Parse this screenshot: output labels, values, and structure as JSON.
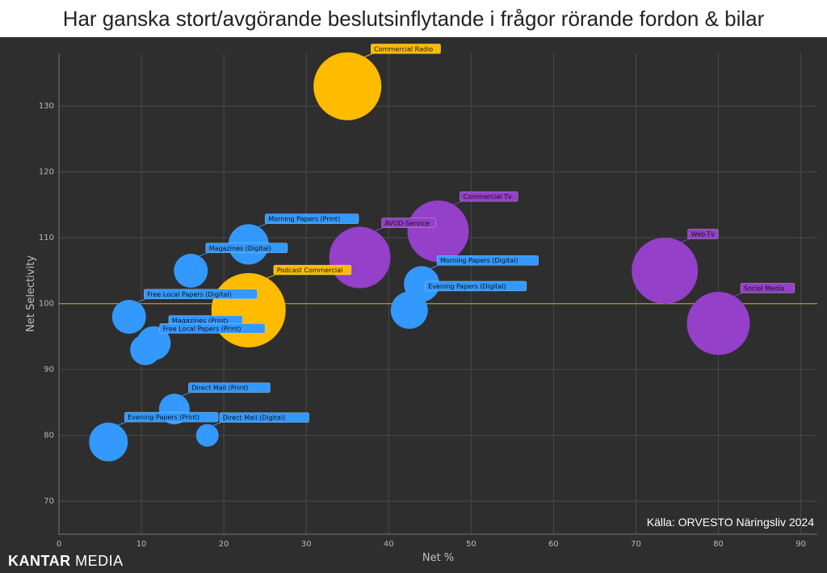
{
  "chart_data": {
    "type": "scatter",
    "title": "Har ganska stort/avgörande beslutsinflytande i frågor rörande fordon & bilar",
    "xlabel": "Net %",
    "ylabel": "Net Selectivity",
    "xlim": [
      0,
      92
    ],
    "ylim": [
      65,
      138
    ],
    "xticks": [
      0,
      10,
      20,
      30,
      40,
      50,
      60,
      70,
      80,
      90
    ],
    "yticks": [
      70,
      80,
      90,
      100,
      110,
      120,
      130
    ],
    "grid": true,
    "reference_line": {
      "axis": "y",
      "value": 100,
      "color": "#e0a020"
    },
    "colors": {
      "print_digital": "#3399ff",
      "radio_podcast": "#ffbb00",
      "tv_social": "#9440c8"
    },
    "points": [
      {
        "label": "Commercial Radio",
        "x": 35,
        "y": 133,
        "r": 42,
        "color": "#ffbb00"
      },
      {
        "label": "Podcast Commercial",
        "x": 23,
        "y": 99,
        "r": 46,
        "color": "#ffbb00"
      },
      {
        "label": "Commercial Tv",
        "x": 46,
        "y": 111,
        "r": 38,
        "color": "#9440c8"
      },
      {
        "label": "AVOD-Service",
        "x": 36.5,
        "y": 107,
        "r": 38,
        "color": "#9440c8"
      },
      {
        "label": "Web-Tv",
        "x": 73.5,
        "y": 105,
        "r": 41,
        "color": "#9440c8"
      },
      {
        "label": "Social Media",
        "x": 80,
        "y": 97,
        "r": 39,
        "color": "#9440c8"
      },
      {
        "label": "Morning Papers (Print)",
        "x": 23,
        "y": 109,
        "r": 25,
        "color": "#3399ff"
      },
      {
        "label": "Magazines (Digital)",
        "x": 16,
        "y": 105,
        "r": 21,
        "color": "#3399ff"
      },
      {
        "label": "Free Local Papers (Digital)",
        "x": 8.5,
        "y": 98,
        "r": 21,
        "color": "#3399ff"
      },
      {
        "label": "Magazines (Print)",
        "x": 11.5,
        "y": 94,
        "r": 21,
        "color": "#3399ff"
      },
      {
        "label": "Free Local Papers (Print)",
        "x": 10.5,
        "y": 93,
        "r": 19,
        "color": "#3399ff"
      },
      {
        "label": "Morning Papers (Digital)",
        "x": 44,
        "y": 103,
        "r": 22,
        "color": "#3399ff"
      },
      {
        "label": "Evening Papers (Digital)",
        "x": 42.5,
        "y": 99,
        "r": 23,
        "color": "#3399ff"
      },
      {
        "label": "Direct Mail (Print)",
        "x": 14,
        "y": 84,
        "r": 19,
        "color": "#3399ff"
      },
      {
        "label": "Direct Mail (Digital)",
        "x": 18,
        "y": 80,
        "r": 14,
        "color": "#3399ff"
      },
      {
        "label": "Evening Papers (Print)",
        "x": 6,
        "y": 79,
        "r": 24,
        "color": "#3399ff"
      }
    ]
  },
  "source": "Källa: ORVESTO Näringsliv 2024",
  "logo": {
    "bold": "KANTAR",
    "light": " MEDIA"
  }
}
